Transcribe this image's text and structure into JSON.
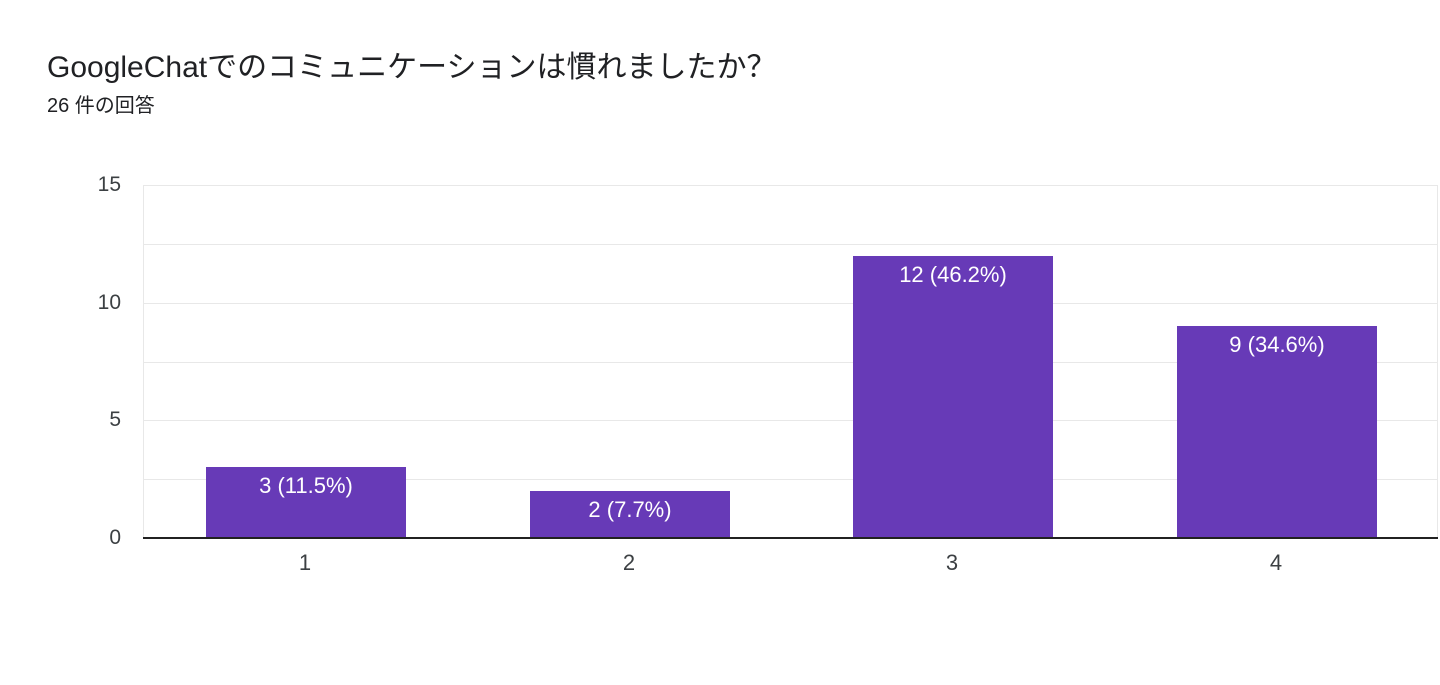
{
  "header": {
    "title": "GoogleChatでのコミュニケーションは慣れましたか？",
    "subtitle": "26 件の回答"
  },
  "chart_data": {
    "type": "bar",
    "title": "GoogleChatでのコミュニケーションは慣れましたか？",
    "subtitle": "26 件の回答",
    "categories": [
      "1",
      "2",
      "3",
      "4"
    ],
    "values": [
      3,
      2,
      12,
      9
    ],
    "bar_labels": [
      "3 (11.5%)",
      "2 (7.7%)",
      "12 (46.2%)",
      "9 (34.6%)"
    ],
    "total_responses": 26,
    "xlabel": "",
    "ylabel": "",
    "ylim": [
      0,
      15
    ],
    "yticks": [
      0,
      5,
      10,
      15
    ],
    "gridline_step": 2.5,
    "grid": true,
    "legend": false,
    "colors": {
      "bar": "#673ab7",
      "bar_label_text": "#ffffff",
      "axis_label_text": "#3c4043",
      "title_text": "#202124",
      "gridline": "#e8e8e8",
      "axis_line": "#212121",
      "background": "#ffffff"
    }
  }
}
